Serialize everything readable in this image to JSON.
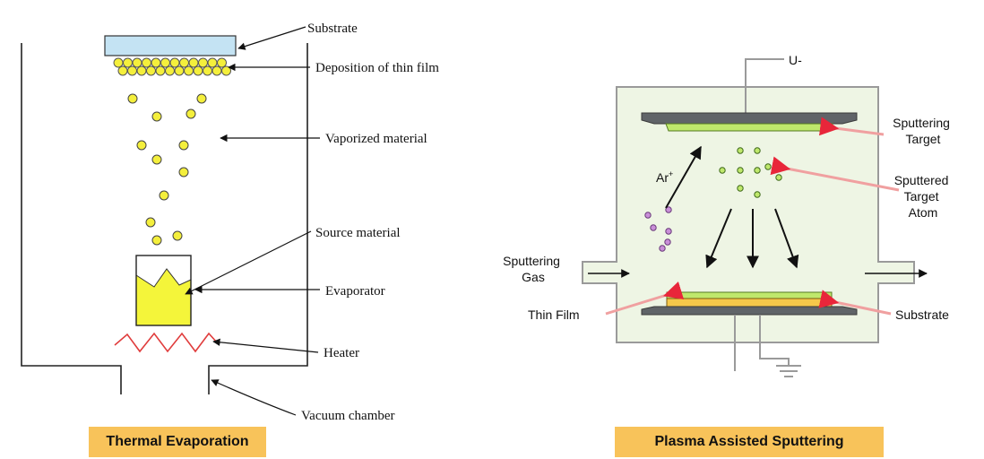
{
  "colors": {
    "caption_bg": "#f8c35a",
    "substrate_blue": "#c4e3f3",
    "particle_yellow": "#f4ef3c",
    "evaporator_fill": "#f4f53a",
    "heater_red": "#e03c3c",
    "chamber_green": "#eef5e4",
    "electrode_gray": "#606468",
    "target_green": "#bfe86c",
    "substrate_orange": "#f6c84a",
    "ion_purple": "#c98fd8",
    "arrow_pink": "#f0a0a0"
  },
  "thermal": {
    "labels": {
      "substrate": "Substrate",
      "deposition": "Deposition of thin film",
      "vaporized": "Vaporized material",
      "source": "Source material",
      "evaporator": "Evaporator",
      "heater": "Heater",
      "vacuum": "Vacuum chamber"
    },
    "caption": "Thermal Evaporation"
  },
  "sputtering": {
    "labels": {
      "voltage": "U-",
      "ion": "Ar",
      "ion_charge": "+",
      "target_line1": "Sputtering",
      "target_line2": "Target",
      "atom_line1": "Sputtered",
      "atom_line2": "Target",
      "atom_line3": "Atom",
      "gas_line1": "Sputtering",
      "gas_line2": "Gas",
      "thin_film": "Thin Film",
      "substrate": "Substrate"
    },
    "caption": "Plasma Assisted Sputtering"
  }
}
